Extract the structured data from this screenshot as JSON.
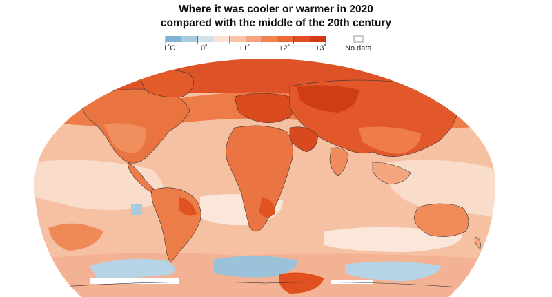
{
  "title": {
    "line1": "Where it was cooler or warmer in 2020",
    "line2": "compared with the middle of the 20th century"
  },
  "legend": {
    "scale_labels": [
      "−1˚C",
      "0˚",
      "+1˚",
      "+2˚",
      "+3˚"
    ],
    "scale_colors": [
      "#7fb3d3",
      "#a9cbe0",
      "#cfe0ea",
      "#f9e3d6",
      "#f7c4a8",
      "#f4a47e",
      "#f0854f",
      "#ea6a35",
      "#e04d22",
      "#d23a17"
    ],
    "no_data_label": "No data"
  },
  "colors": {
    "cold": "#a9cbe0",
    "neutral": "#fbe2d3",
    "warm1": "#f5b596",
    "warm2": "#f08a5a",
    "warm3": "#e66a37",
    "hot": "#d9471d",
    "no_data": "#ffffff",
    "borders": "#333333"
  }
}
